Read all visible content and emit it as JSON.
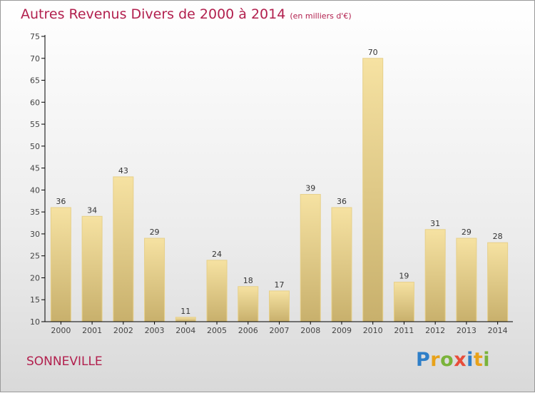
{
  "header": {
    "title": "Autres Revenus Divers de 2000 à 2014",
    "subtitle": "(en milliers d'€)"
  },
  "footer": {
    "city": "SONNEVILLE",
    "logo_letters": [
      "P",
      "r",
      "o",
      "x",
      "i",
      "t",
      "i"
    ]
  },
  "colors": {
    "title": "#b2204e",
    "bar_light": "#f6e2a2",
    "bar_dark": "#c8b06c",
    "axis": "#000000"
  },
  "chart_data": {
    "type": "bar",
    "title": "Autres Revenus Divers de 2000 à 2014",
    "subtitle": "(en milliers d'€)",
    "categories": [
      "2000",
      "2001",
      "2002",
      "2003",
      "2004",
      "2005",
      "2006",
      "2007",
      "2008",
      "2009",
      "2010",
      "2011",
      "2012",
      "2013",
      "2014"
    ],
    "values": [
      36,
      34,
      43,
      29,
      11,
      24,
      18,
      17,
      39,
      36,
      70,
      19,
      31,
      29,
      28
    ],
    "ylim": [
      10,
      75
    ],
    "yticks": [
      10,
      15,
      20,
      25,
      30,
      35,
      40,
      45,
      50,
      55,
      60,
      65,
      70,
      75
    ],
    "grid": false,
    "show_value_labels": true
  }
}
